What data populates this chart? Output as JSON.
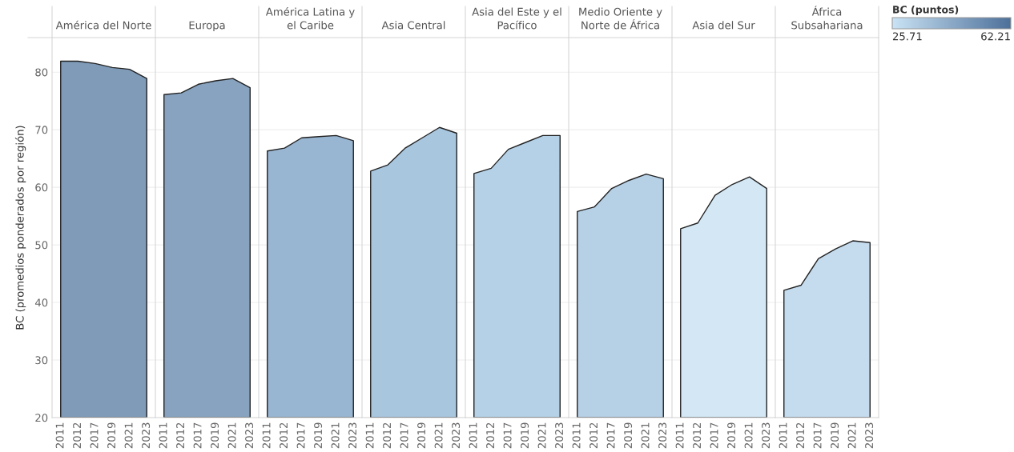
{
  "chart_data": [
    {
      "type": "area",
      "title": "América del Norte",
      "ylabel": "BC (promedios ponderados por región)",
      "categories": [
        "2011",
        "2012",
        "2017",
        "2019",
        "2021",
        "2023"
      ],
      "values": [
        81.9,
        81.9,
        81.5,
        80.8,
        80.5,
        78.9
      ],
      "color": "#7f9bb8",
      "ylim": [
        20,
        86
      ],
      "yticks": [
        20,
        30,
        40,
        50,
        60,
        70,
        80
      ],
      "grid": "y"
    },
    {
      "type": "area",
      "title": "Europa",
      "categories": [
        "2011",
        "2012",
        "2017",
        "2019",
        "2021",
        "2023"
      ],
      "values": [
        76.1,
        76.4,
        77.9,
        78.5,
        78.9,
        77.3
      ],
      "color": "#87a3c0",
      "ylim": [
        20,
        86
      ],
      "yticks": [
        20,
        30,
        40,
        50,
        60,
        70,
        80
      ],
      "grid": "y",
      "tick_labels": "x"
    },
    {
      "type": "area",
      "title": "América Latina y el Caribe",
      "categories": [
        "2011",
        "2012",
        "2017",
        "2019",
        "2021",
        "2023"
      ],
      "values": [
        66.3,
        66.8,
        68.6,
        68.8,
        69.0,
        68.1
      ],
      "color": "#98b5d1",
      "ylim": [
        20,
        86
      ],
      "yticks": [
        20,
        30,
        40,
        50,
        60,
        70,
        80
      ],
      "grid": "y",
      "tick_labels": "x"
    },
    {
      "type": "area",
      "title": "Asia Central",
      "categories": [
        "2011",
        "2012",
        "2017",
        "2019",
        "2021",
        "2023"
      ],
      "values": [
        62.8,
        63.9,
        66.8,
        68.6,
        70.4,
        69.4
      ],
      "color": "#a9c6df",
      "ylim": [
        20,
        86
      ],
      "yticks": [
        20,
        30,
        40,
        50,
        60,
        70,
        80
      ],
      "grid": "y",
      "tick_labels": "x"
    },
    {
      "type": "area",
      "title": "Asia del Este y el Pacífico",
      "categories": [
        "2011",
        "2012",
        "2017",
        "2019",
        "2021",
        "2023"
      ],
      "values": [
        62.4,
        63.3,
        66.6,
        67.8,
        69.0,
        69.0
      ],
      "color": "#b4d1e7",
      "ylim": [
        20,
        86
      ],
      "yticks": [
        20,
        30,
        40,
        50,
        60,
        70,
        80
      ],
      "grid": "y",
      "tick_labels": "x"
    },
    {
      "type": "area",
      "title": "Medio Oriente y Norte de África",
      "categories": [
        "2011",
        "2012",
        "2017",
        "2019",
        "2021",
        "2023"
      ],
      "values": [
        55.8,
        56.6,
        59.8,
        61.2,
        62.3,
        61.5
      ],
      "color": "#b6d0e6",
      "ylim": [
        20,
        86
      ],
      "yticks": [
        20,
        30,
        40,
        50,
        60,
        70,
        80
      ],
      "grid": "y",
      "tick_labels": "x"
    },
    {
      "type": "area",
      "title": "Asia del Sur",
      "categories": [
        "2011",
        "2012",
        "2017",
        "2019",
        "2021",
        "2023"
      ],
      "values": [
        52.8,
        53.8,
        58.6,
        60.5,
        61.8,
        59.8
      ],
      "color": "#d3e7f4",
      "ylim": [
        20,
        86
      ],
      "yticks": [
        20,
        30,
        40,
        50,
        60,
        70,
        80
      ],
      "grid": "y",
      "tick_labels": "x"
    },
    {
      "type": "area",
      "title": "África Subsahariana",
      "categories": [
        "2011",
        "2012",
        "2017",
        "2019",
        "2021",
        "2023"
      ],
      "values": [
        42.1,
        43.0,
        47.6,
        49.3,
        50.7,
        50.4
      ],
      "color": "#c5dcee",
      "ylim": [
        20,
        86
      ],
      "yticks": [
        20,
        30,
        40,
        50,
        60,
        70,
        80
      ],
      "grid": "y",
      "tick_labels": "x",
      "clabel": "BC (puntos)",
      "clim": [
        25.71,
        62.21
      ],
      "cticks": [
        25.71,
        62.21
      ]
    }
  ]
}
